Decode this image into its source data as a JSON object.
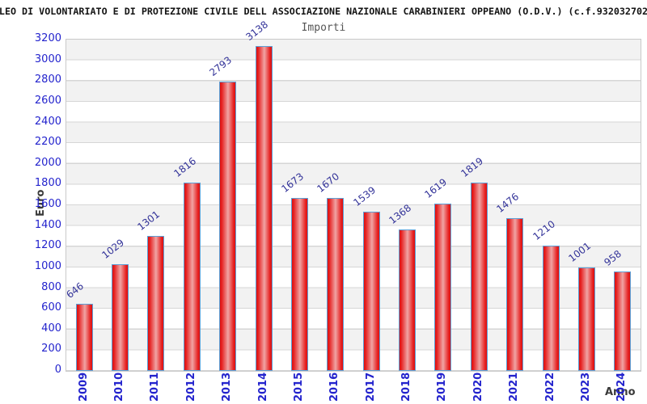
{
  "chart_data": {
    "type": "bar",
    "title": "LEO DI VOLONTARIATO E DI PROTEZIONE CIVILE DELL ASSOCIAZIONE NAZIONALE CARABINIERI OPPEANO (O.D.V.) (c.f.932032702",
    "title_note": "title overflows the image and is clipped on both sides",
    "subtitle": "Importi",
    "xlabel": "Anno",
    "ylabel": "Euro",
    "categories": [
      "2009",
      "2010",
      "2011",
      "2012",
      "2013",
      "2014",
      "2015",
      "2016",
      "2017",
      "2018",
      "2019",
      "2020",
      "2021",
      "2022",
      "2023",
      "2024"
    ],
    "values": [
      646,
      1029,
      1301,
      1816,
      2793,
      3138,
      1673,
      1670,
      1539,
      1368,
      1619,
      1819,
      1476,
      1210,
      1001,
      958
    ],
    "ylim": [
      0,
      3200
    ],
    "ytick_step": 200,
    "legend": "none",
    "grid": "horizontal gridlines every 200 with alternating shaded bands",
    "colors": {
      "bar_fill_edge": "#dc1010",
      "bar_fill_mid": "#e62222",
      "bar_fill_highlight": "#f0a4a4",
      "bar_border": "#5c9fd6",
      "value_label": "#333399",
      "axis_tick_label": "#2323cd",
      "title": "#141414",
      "subtitle": "#555555",
      "axis_title": "#3a3a3a",
      "band_gray": "#f2f2f2",
      "band_white": "#ffffff",
      "gridline": "#d6d6d6",
      "plot_border": "#c9c9c9",
      "background": "#ffffff"
    }
  }
}
